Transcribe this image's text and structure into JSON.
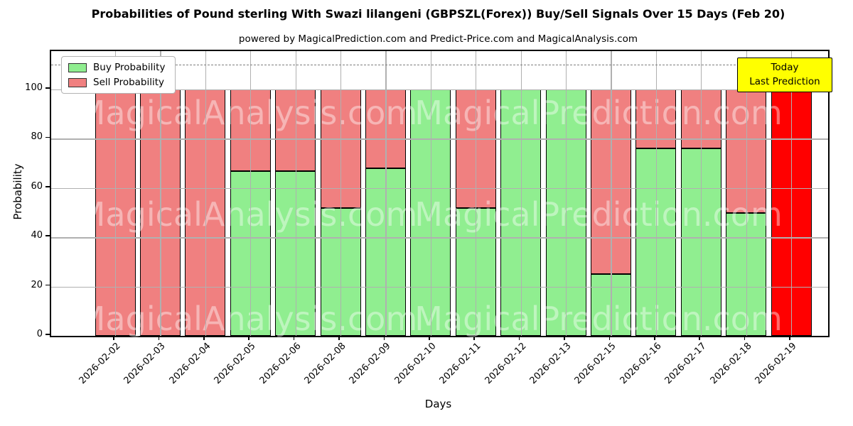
{
  "title": "Probabilities of Pound sterling With Swazi lilangeni (GBPSZL(Forex)) Buy/Sell Signals Over 15 Days (Feb 20)",
  "subtitle": "powered by MagicalPrediction.com and Predict-Price.com and MagicalAnalysis.com",
  "axes": {
    "xlabel": "Days",
    "ylabel": "Probability"
  },
  "legend": {
    "items": [
      {
        "label": "Buy Probability",
        "color": "#90EE90"
      },
      {
        "label": "Sell Probability",
        "color": "#F08080"
      }
    ]
  },
  "annotation": {
    "line1": "Today",
    "line2": "Last Prediction",
    "bg_color": "#FFFF00"
  },
  "watermarks": {
    "left": "MagicalAnalysis.com",
    "right": "MagicalPrediction.com"
  },
  "colors": {
    "buy": "#90EE90",
    "sell": "#F08080",
    "today_bar": "#FF0000",
    "grid": "#B0B0B0",
    "dashed_line": "#7F7F7F",
    "annotation_bg": "#FFFF00"
  },
  "chart_data": {
    "type": "bar",
    "stacked": true,
    "grid": true,
    "legend_position": "upper left",
    "title": "Probabilities of Pound sterling With Swazi lilangeni (GBPSZL(Forex)) Buy/Sell Signals Over 15 Days (Feb 20)",
    "xlabel": "Days",
    "ylabel": "Probability",
    "categories": [
      "2026-02-02",
      "2026-02-03",
      "2026-02-04",
      "2026-02-05",
      "2026-02-06",
      "2026-02-08",
      "2026-02-09",
      "2026-02-10",
      "2026-02-11",
      "2026-02-12",
      "2026-02-13",
      "2026-02-15",
      "2026-02-16",
      "2026-02-17",
      "2026-02-18",
      "2026-02-19"
    ],
    "series": [
      {
        "name": "Buy Probability",
        "color": "#90EE90",
        "values": [
          0,
          0,
          0,
          67,
          67,
          52,
          68,
          100,
          52,
          100,
          100,
          25,
          76,
          76,
          50,
          0
        ]
      },
      {
        "name": "Sell Probability",
        "color": "#F08080",
        "values": [
          100,
          100,
          100,
          33,
          33,
          48,
          32,
          0,
          48,
          0,
          0,
          75,
          24,
          24,
          50,
          100
        ]
      }
    ],
    "today": {
      "index": 15,
      "category": "2026-02-19",
      "value": 100,
      "color": "#FF0000"
    },
    "yticks": [
      0,
      20,
      40,
      60,
      80,
      100
    ],
    "ylim": [
      0,
      115.6
    ],
    "dashed_line_y": 110
  }
}
